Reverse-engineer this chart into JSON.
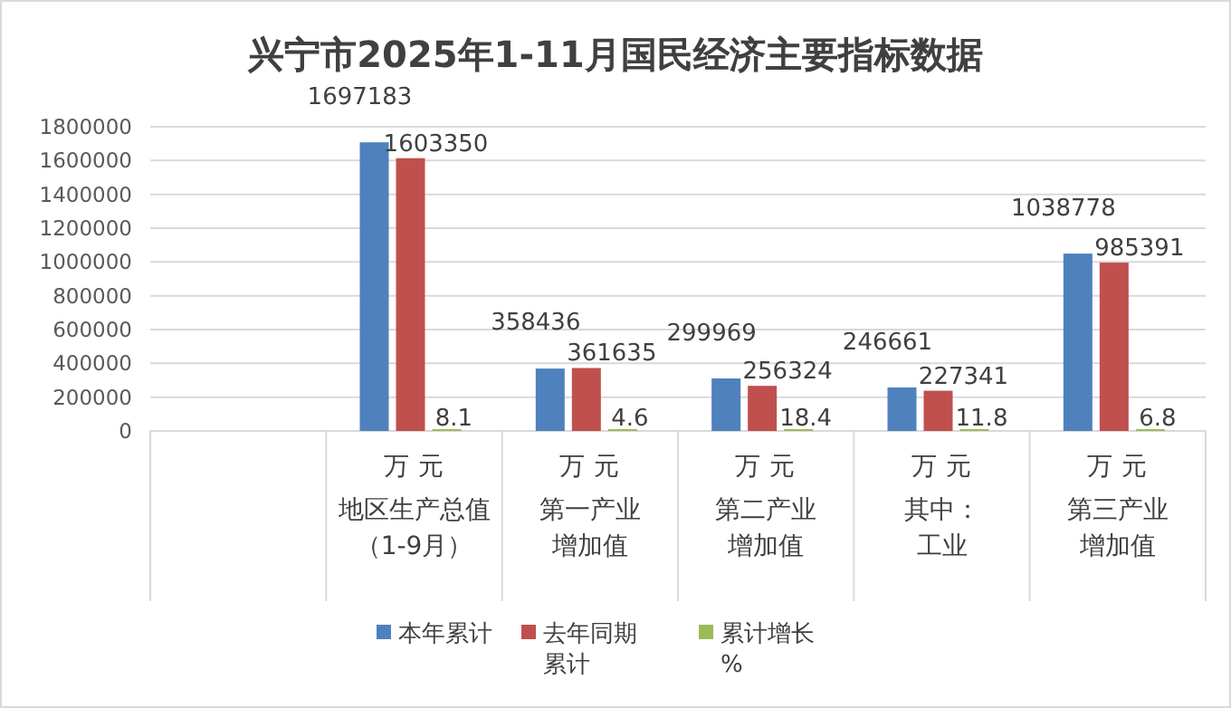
{
  "chart_data": {
    "type": "bar",
    "title": "兴宁市2025年1-11月国民经济主要指标数据",
    "categories": [
      null,
      "地区生产总值（1-9月）",
      "第一产业增加值",
      "第二产业增加值",
      "其中：工业",
      "第三产业增加值"
    ],
    "annotations": [
      "万元",
      "万元",
      "万元",
      "万元",
      "万元"
    ],
    "series": [
      {
        "name": "本年累计",
        "color": "#4f81bd",
        "values": [
          null,
          1697183,
          358436,
          299969,
          246661,
          1038778
        ]
      },
      {
        "name": "去年同期累计",
        "color": "#c0504d",
        "values": [
          null,
          1603350,
          361635,
          256324,
          227341,
          985391
        ]
      },
      {
        "name": "累计增长%",
        "color": "#9bbb59",
        "values": [
          null,
          8.1,
          4.6,
          18.4,
          11.8,
          6.8
        ]
      }
    ],
    "ylim": [
      0,
      1800000
    ],
    "yticks": [
      0,
      200000,
      400000,
      600000,
      800000,
      1000000,
      1200000,
      1400000,
      1600000,
      1800000
    ],
    "grid": "y",
    "data_labels": true,
    "legend": "bottom"
  }
}
